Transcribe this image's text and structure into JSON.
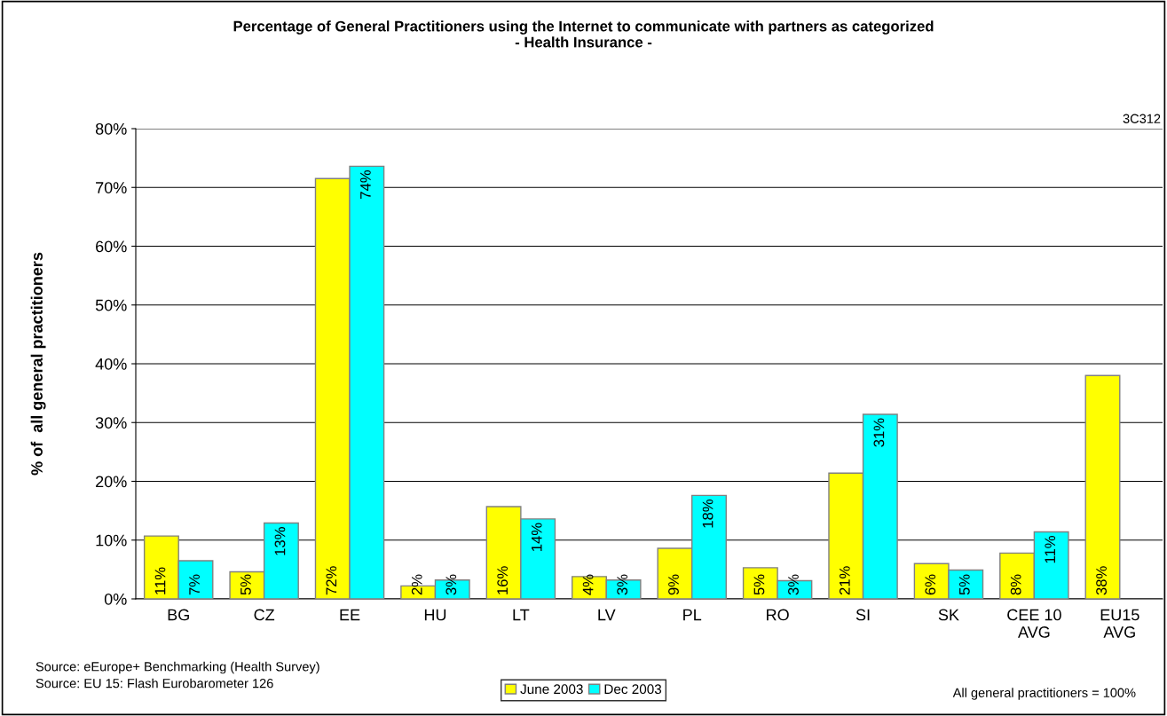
{
  "chart_data": {
    "type": "bar",
    "title": "Percentage of General Practitioners using the Internet to communicate with partners as categorized\n- Health Insurance -",
    "ylabel": "% of  all general practitioners",
    "categories": [
      "BG",
      "CZ",
      "EE",
      "HU",
      "LT",
      "LV",
      "PL",
      "RO",
      "SI",
      "SK",
      "CEE 10\nAVG",
      "EU15\nAVG"
    ],
    "series": [
      {
        "name": "June 2003",
        "color": "#ffff00",
        "values": [
          10.7,
          4.6,
          71.5,
          2.2,
          15.7,
          3.8,
          8.6,
          5.3,
          21.4,
          6.0,
          7.8,
          38.0
        ],
        "value_labels": [
          "11%",
          "5%",
          "72%",
          "2%",
          "16%",
          "4%",
          "9%",
          "5%",
          "21%",
          "6%",
          "8%",
          "38%"
        ]
      },
      {
        "name": "Dec 2003",
        "color": "#00ffff",
        "values": [
          6.5,
          12.9,
          73.6,
          3.2,
          13.6,
          3.2,
          17.6,
          3.1,
          31.4,
          4.9,
          11.4,
          null
        ],
        "value_labels": [
          "7%",
          "13%",
          "74%",
          "3%",
          "14%",
          "3%",
          "18%",
          "3%",
          "31%",
          "5%",
          "11%",
          null
        ]
      }
    ],
    "ylim": [
      0,
      80
    ],
    "yticks": [
      {
        "value": 0,
        "label": "0%"
      },
      {
        "value": 10,
        "label": "10%"
      },
      {
        "value": 20,
        "label": "20%"
      },
      {
        "value": 30,
        "label": "30%"
      },
      {
        "value": 40,
        "label": "40%"
      },
      {
        "value": 50,
        "label": "50%"
      },
      {
        "value": 60,
        "label": "60%"
      },
      {
        "value": 70,
        "label": "70%"
      },
      {
        "value": 80,
        "label": "80%"
      }
    ],
    "grid": "y",
    "legend": "bottom",
    "annotations": [
      "3C312",
      "Source: eEurope+ Benchmarking (Health Survey)\nSource: EU 15: Flash Eurobarometer 126",
      "All general practitioners = 100%"
    ]
  }
}
